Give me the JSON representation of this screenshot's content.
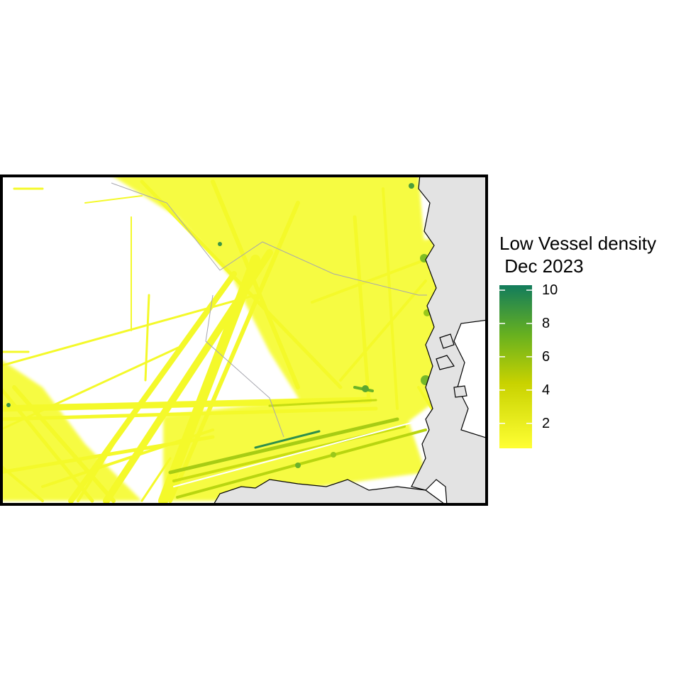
{
  "legend": {
    "title_line1": "Low Vessel density",
    "title_line2": " Dec 2023",
    "ticks": [
      {
        "value": 2,
        "label": "2"
      },
      {
        "value": 4,
        "label": "4"
      },
      {
        "value": 6,
        "label": "6"
      },
      {
        "value": 8,
        "label": "8"
      },
      {
        "value": 10,
        "label": "10"
      }
    ],
    "range": [
      0.5,
      10.3
    ],
    "colors": {
      "low": "#ffff33",
      "mid": "#c8d200",
      "high_mid": "#66b020",
      "high": "#127c5c"
    }
  },
  "map": {
    "water_color": "#ffffff",
    "land_color": "#e3e3e3",
    "boundary_color": "#a0a0a8",
    "frame_color": "#000000"
  }
}
